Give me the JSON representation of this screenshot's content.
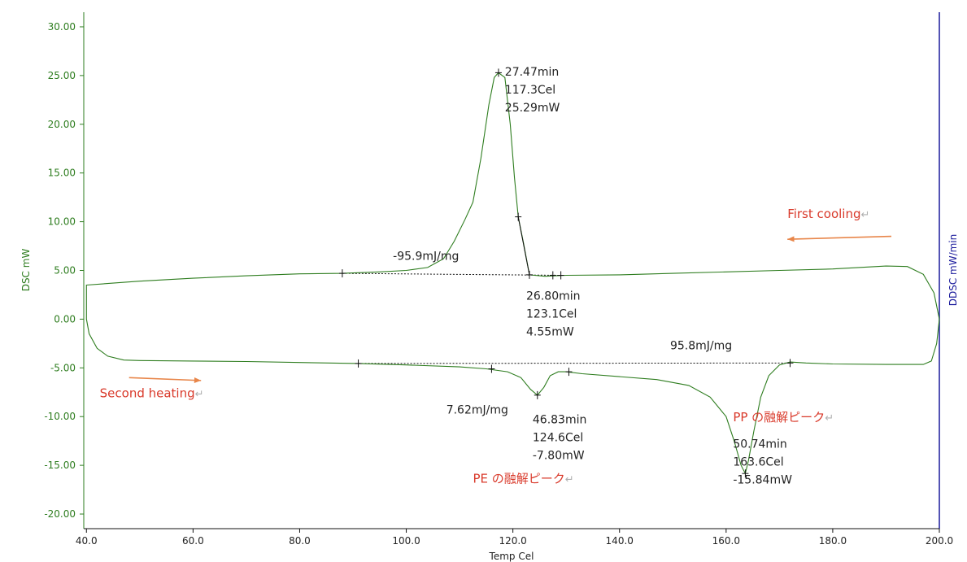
{
  "chart_data": {
    "type": "line",
    "xlabel": "Temp Cel",
    "ylabel": "DSC mW",
    "ylabel_right": "DDSC mW/min",
    "xlim": [
      39.5,
      200.0
    ],
    "ylim": [
      -21.5,
      31.5
    ],
    "x_ticks": [
      40,
      60,
      80,
      100,
      120,
      140,
      160,
      180,
      200
    ],
    "x_tick_labels": [
      "40.0",
      "60.0",
      "80.0",
      "100.0",
      "120.0",
      "140.0",
      "160.0",
      "180.0",
      "200.0"
    ],
    "y_ticks": [
      30,
      25,
      20,
      15,
      10,
      5,
      0,
      -5,
      -10,
      -15,
      -20
    ],
    "y_tick_labels": [
      "30.00",
      "25.00",
      "20.00",
      "15.00",
      "10.00",
      "5.00",
      "0.00",
      "-5.00",
      "-10.00",
      "-15.00",
      "-20.00"
    ],
    "grid": false,
    "colors": {
      "curve": "#2e7d1f",
      "axis_left": "#2e7d1f",
      "axis_right": "#1a1a9c",
      "arrow": "#e8864a",
      "label": "#d93a2b"
    },
    "series": [
      {
        "points": [
          [
            40.0,
            3.5
          ],
          [
            50,
            3.9
          ],
          [
            60,
            4.2
          ],
          [
            70,
            4.45
          ],
          [
            80,
            4.65
          ],
          [
            88,
            4.7
          ],
          [
            95,
            4.85
          ],
          [
            100,
            5.0
          ],
          [
            104,
            5.3
          ],
          [
            107,
            6.2
          ],
          [
            109,
            8.0
          ],
          [
            111,
            10.2
          ],
          [
            112.5,
            12.0
          ],
          [
            114,
            16.5
          ],
          [
            115.5,
            22.0
          ],
          [
            116.5,
            24.8
          ],
          [
            117.3,
            25.29
          ],
          [
            118.5,
            24.8
          ],
          [
            119.5,
            20.0
          ],
          [
            120.3,
            14.5
          ],
          [
            121.0,
            10.5
          ],
          [
            122.0,
            7.8
          ],
          [
            123.1,
            4.55
          ],
          [
            126,
            4.4
          ],
          [
            130,
            4.5
          ],
          [
            140,
            4.55
          ],
          [
            150,
            4.7
          ],
          [
            160,
            4.85
          ],
          [
            170,
            5.0
          ],
          [
            180,
            5.15
          ],
          [
            190,
            5.45
          ],
          [
            194,
            5.4
          ],
          [
            197,
            4.6
          ],
          [
            199,
            2.7
          ],
          [
            200.0,
            0.0
          ],
          [
            199.5,
            -2.5
          ],
          [
            198.5,
            -4.3
          ],
          [
            197,
            -4.65
          ],
          [
            190,
            -4.65
          ],
          [
            180,
            -4.6
          ],
          [
            175,
            -4.5
          ],
          [
            172,
            -4.4
          ],
          [
            170,
            -4.7
          ],
          [
            168,
            -5.8
          ],
          [
            166.5,
            -8.0
          ],
          [
            165.2,
            -11.5
          ],
          [
            164.2,
            -14.5
          ],
          [
            163.6,
            -15.84
          ],
          [
            162.8,
            -15.0
          ],
          [
            161.5,
            -12.5
          ],
          [
            160,
            -10.0
          ],
          [
            157,
            -8.0
          ],
          [
            153,
            -6.8
          ],
          [
            147,
            -6.2
          ],
          [
            140,
            -5.9
          ],
          [
            133,
            -5.6
          ],
          [
            130,
            -5.4
          ],
          [
            128.5,
            -5.4
          ],
          [
            127,
            -5.8
          ],
          [
            125.8,
            -7.0
          ],
          [
            124.6,
            -7.8
          ],
          [
            123.3,
            -7.2
          ],
          [
            121.5,
            -6.0
          ],
          [
            119,
            -5.4
          ],
          [
            115,
            -5.1
          ],
          [
            110,
            -4.9
          ],
          [
            100,
            -4.7
          ],
          [
            91,
            -4.55
          ],
          [
            80,
            -4.45
          ],
          [
            70,
            -4.35
          ],
          [
            60,
            -4.3
          ],
          [
            50,
            -4.25
          ],
          [
            47,
            -4.2
          ],
          [
            44,
            -3.8
          ],
          [
            42,
            -3.0
          ],
          [
            40.5,
            -1.5
          ],
          [
            40.0,
            0.0
          ]
        ]
      }
    ],
    "baselines": [
      {
        "from": [
          88.0,
          4.7
        ],
        "to": [
          129.0,
          4.5
        ]
      },
      {
        "from": [
          91.0,
          -4.55
        ],
        "to": [
          172.0,
          -4.5
        ]
      }
    ],
    "tangent": {
      "from": [
        121.0,
        10.5
      ],
      "to": [
        123.1,
        4.55
      ]
    },
    "markers": [
      [
        88.0,
        4.7
      ],
      [
        117.3,
        25.29
      ],
      [
        121.0,
        10.5
      ],
      [
        123.1,
        4.55
      ],
      [
        127.5,
        4.5
      ],
      [
        129.0,
        4.5
      ],
      [
        91.0,
        -4.55
      ],
      [
        116.0,
        -5.1
      ],
      [
        124.6,
        -7.8
      ],
      [
        130.5,
        -5.4
      ],
      [
        163.6,
        -15.84
      ],
      [
        172.0,
        -4.5
      ]
    ],
    "annotations": [
      {
        "id": "peak1",
        "lines": [
          "27.47min",
          "117.3Cel",
          "25.29mW"
        ],
        "at": [
          118.5,
          25.0
        ]
      },
      {
        "id": "onset1",
        "lines": [
          "26.80min",
          "123.1Cel",
          "4.55mW"
        ],
        "at": [
          122.5,
          2.0
        ]
      },
      {
        "id": "area1",
        "lines": [
          "-95.9mJ/mg"
        ],
        "at": [
          97.5,
          6.1
        ]
      },
      {
        "id": "area2",
        "lines": [
          "95.8mJ/mg"
        ],
        "at": [
          149.5,
          -3.1
        ]
      },
      {
        "id": "area3",
        "lines": [
          "7.62mJ/mg"
        ],
        "at": [
          107.5,
          -9.7
        ]
      },
      {
        "id": "peak_pe",
        "lines": [
          "46.83min",
          "124.6Cel",
          "-7.80mW"
        ],
        "at": [
          123.7,
          -10.7
        ]
      },
      {
        "id": "peak_pp",
        "lines": [
          "50.74min",
          "163.6Cel",
          "-15.84mW"
        ],
        "at": [
          161.3,
          -13.2
        ]
      }
    ],
    "labels": [
      {
        "id": "first_cooling",
        "text": "First cooling",
        "mark": "↵",
        "at": [
          171.5,
          10.4
        ]
      },
      {
        "id": "second_heating",
        "text": "Second heating",
        "mark": "↵",
        "at": [
          42.5,
          -8.0
        ]
      },
      {
        "id": "pp_melt",
        "text": "PP の融解ピーク",
        "mark": "↵",
        "at": [
          161.3,
          -10.5
        ]
      },
      {
        "id": "pe_melt",
        "text": "PE の融解ピーク",
        "mark": "↵",
        "at": [
          112.5,
          -16.8
        ]
      }
    ],
    "arrows": [
      {
        "id": "arrow_cooling",
        "from": [
          191.0,
          8.5
        ],
        "to": [
          171.5,
          8.2
        ]
      },
      {
        "id": "arrow_heating",
        "from": [
          48.0,
          -6.0
        ],
        "to": [
          61.5,
          -6.3
        ]
      }
    ]
  }
}
